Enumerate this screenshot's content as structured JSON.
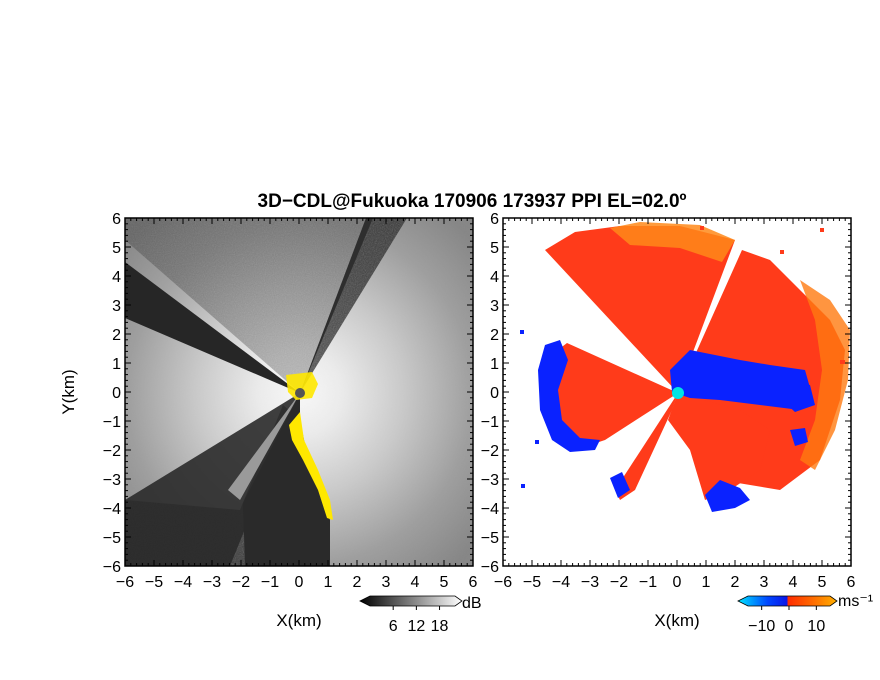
{
  "chart_data": [
    {
      "type": "heatmap",
      "title": "3D−CDL@Fukuoka 170906 173937 PPI EL=02.0º",
      "xlabel": "X(km)",
      "ylabel": "Y(km)",
      "xlim": [
        -6,
        6
      ],
      "ylim": [
        -6,
        6
      ],
      "xticks": [
        "−6",
        "−5",
        "−4",
        "−3",
        "−2",
        "−1",
        "0",
        "1",
        "2",
        "3",
        "4",
        "5",
        "6"
      ],
      "yticks": [
        "6",
        "5",
        "4",
        "3",
        "2",
        "1",
        "0",
        "−1",
        "−2",
        "−3",
        "−4",
        "−5",
        "−6"
      ],
      "colorbar": {
        "unit": "dB",
        "ticks": [
          "6",
          "12",
          "18"
        ],
        "range": [
          0,
          22
        ],
        "colors": [
          "#000000",
          "#ffffff"
        ]
      },
      "radar_site": [
        0,
        0
      ],
      "radar_site_color": "#555555",
      "highlight_color": "#ffe800",
      "grid": false,
      "legend": "none"
    },
    {
      "type": "heatmap",
      "title": "",
      "xlabel": "X(km)",
      "ylabel": "",
      "xlim": [
        -6,
        6
      ],
      "ylim": [
        -6,
        6
      ],
      "xticks": [
        "−6",
        "−5",
        "−4",
        "−3",
        "−2",
        "−1",
        "0",
        "1",
        "2",
        "3",
        "4",
        "5",
        "6"
      ],
      "yticks": [],
      "colorbar": {
        "unit": "ms⁻¹",
        "ticks": [
          "−10",
          "0",
          "10"
        ],
        "range": [
          -15,
          15
        ],
        "colors": [
          "#00e5ff",
          "#0047ff",
          "#0a14e6",
          "#ff2a00",
          "#ff6a00",
          "#ffb000"
        ]
      },
      "radar_site": [
        0,
        0
      ],
      "radar_site_color": "#00e5e5",
      "positive_color": "#ff3b1a",
      "negative_color": "#0a22ff",
      "grid": false,
      "legend": "none"
    }
  ]
}
